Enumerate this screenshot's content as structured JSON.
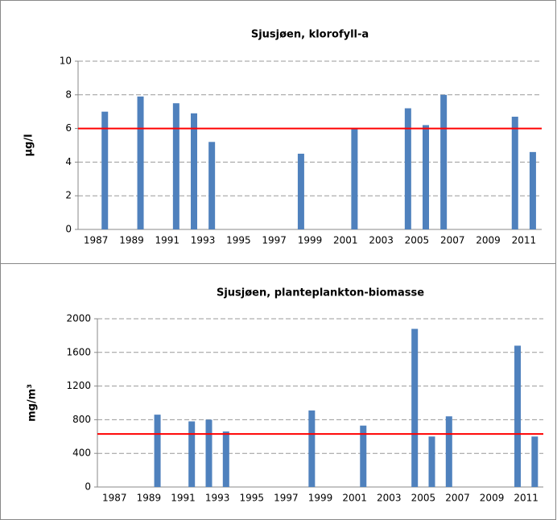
{
  "chart_data": [
    {
      "type": "bar",
      "title": "Sjusjøen, klorofyll-a",
      "y_label": "µg/l",
      "categories": [
        "1987",
        null,
        "1989",
        null,
        "1991",
        null,
        "1993",
        null,
        "1995",
        null,
        "1997",
        null,
        "1999",
        null,
        "2001",
        null,
        "2003",
        null,
        "2005",
        null,
        "2007",
        null,
        "2009",
        null,
        "2011",
        null
      ],
      "values": [
        null,
        7.0,
        null,
        7.9,
        null,
        7.5,
        6.9,
        5.2,
        null,
        null,
        null,
        null,
        4.5,
        null,
        null,
        6.0,
        null,
        null,
        7.2,
        6.2,
        8.0,
        null,
        null,
        null,
        6.7,
        4.6
      ],
      "color": "#4f81bd",
      "ylim": [
        0,
        10
      ],
      "yticks": [
        0,
        2,
        4,
        6,
        8,
        10
      ],
      "grid": true,
      "reference_line": {
        "value": 6,
        "color": "#ff0000"
      }
    },
    {
      "type": "bar",
      "title": "Sjusjøen, planteplankton-biomasse",
      "y_label": "mg/m³",
      "categories": [
        "1987",
        null,
        "1989",
        null,
        "1991",
        null,
        "1993",
        null,
        "1995",
        null,
        "1997",
        null,
        "1999",
        null,
        "2001",
        null,
        "2003",
        null,
        "2005",
        null,
        "2007",
        null,
        "2009",
        null,
        "2011",
        null
      ],
      "values": [
        null,
        null,
        null,
        860,
        null,
        780,
        800,
        660,
        null,
        null,
        null,
        null,
        910,
        null,
        null,
        730,
        null,
        null,
        1880,
        600,
        840,
        null,
        null,
        null,
        1680,
        600
      ],
      "color": "#4f81bd",
      "ylim": [
        0,
        2000
      ],
      "yticks": [
        0,
        400,
        800,
        1200,
        1600,
        2000
      ],
      "grid": true,
      "reference_line": {
        "value": 630,
        "color": "#ff0000"
      }
    }
  ]
}
